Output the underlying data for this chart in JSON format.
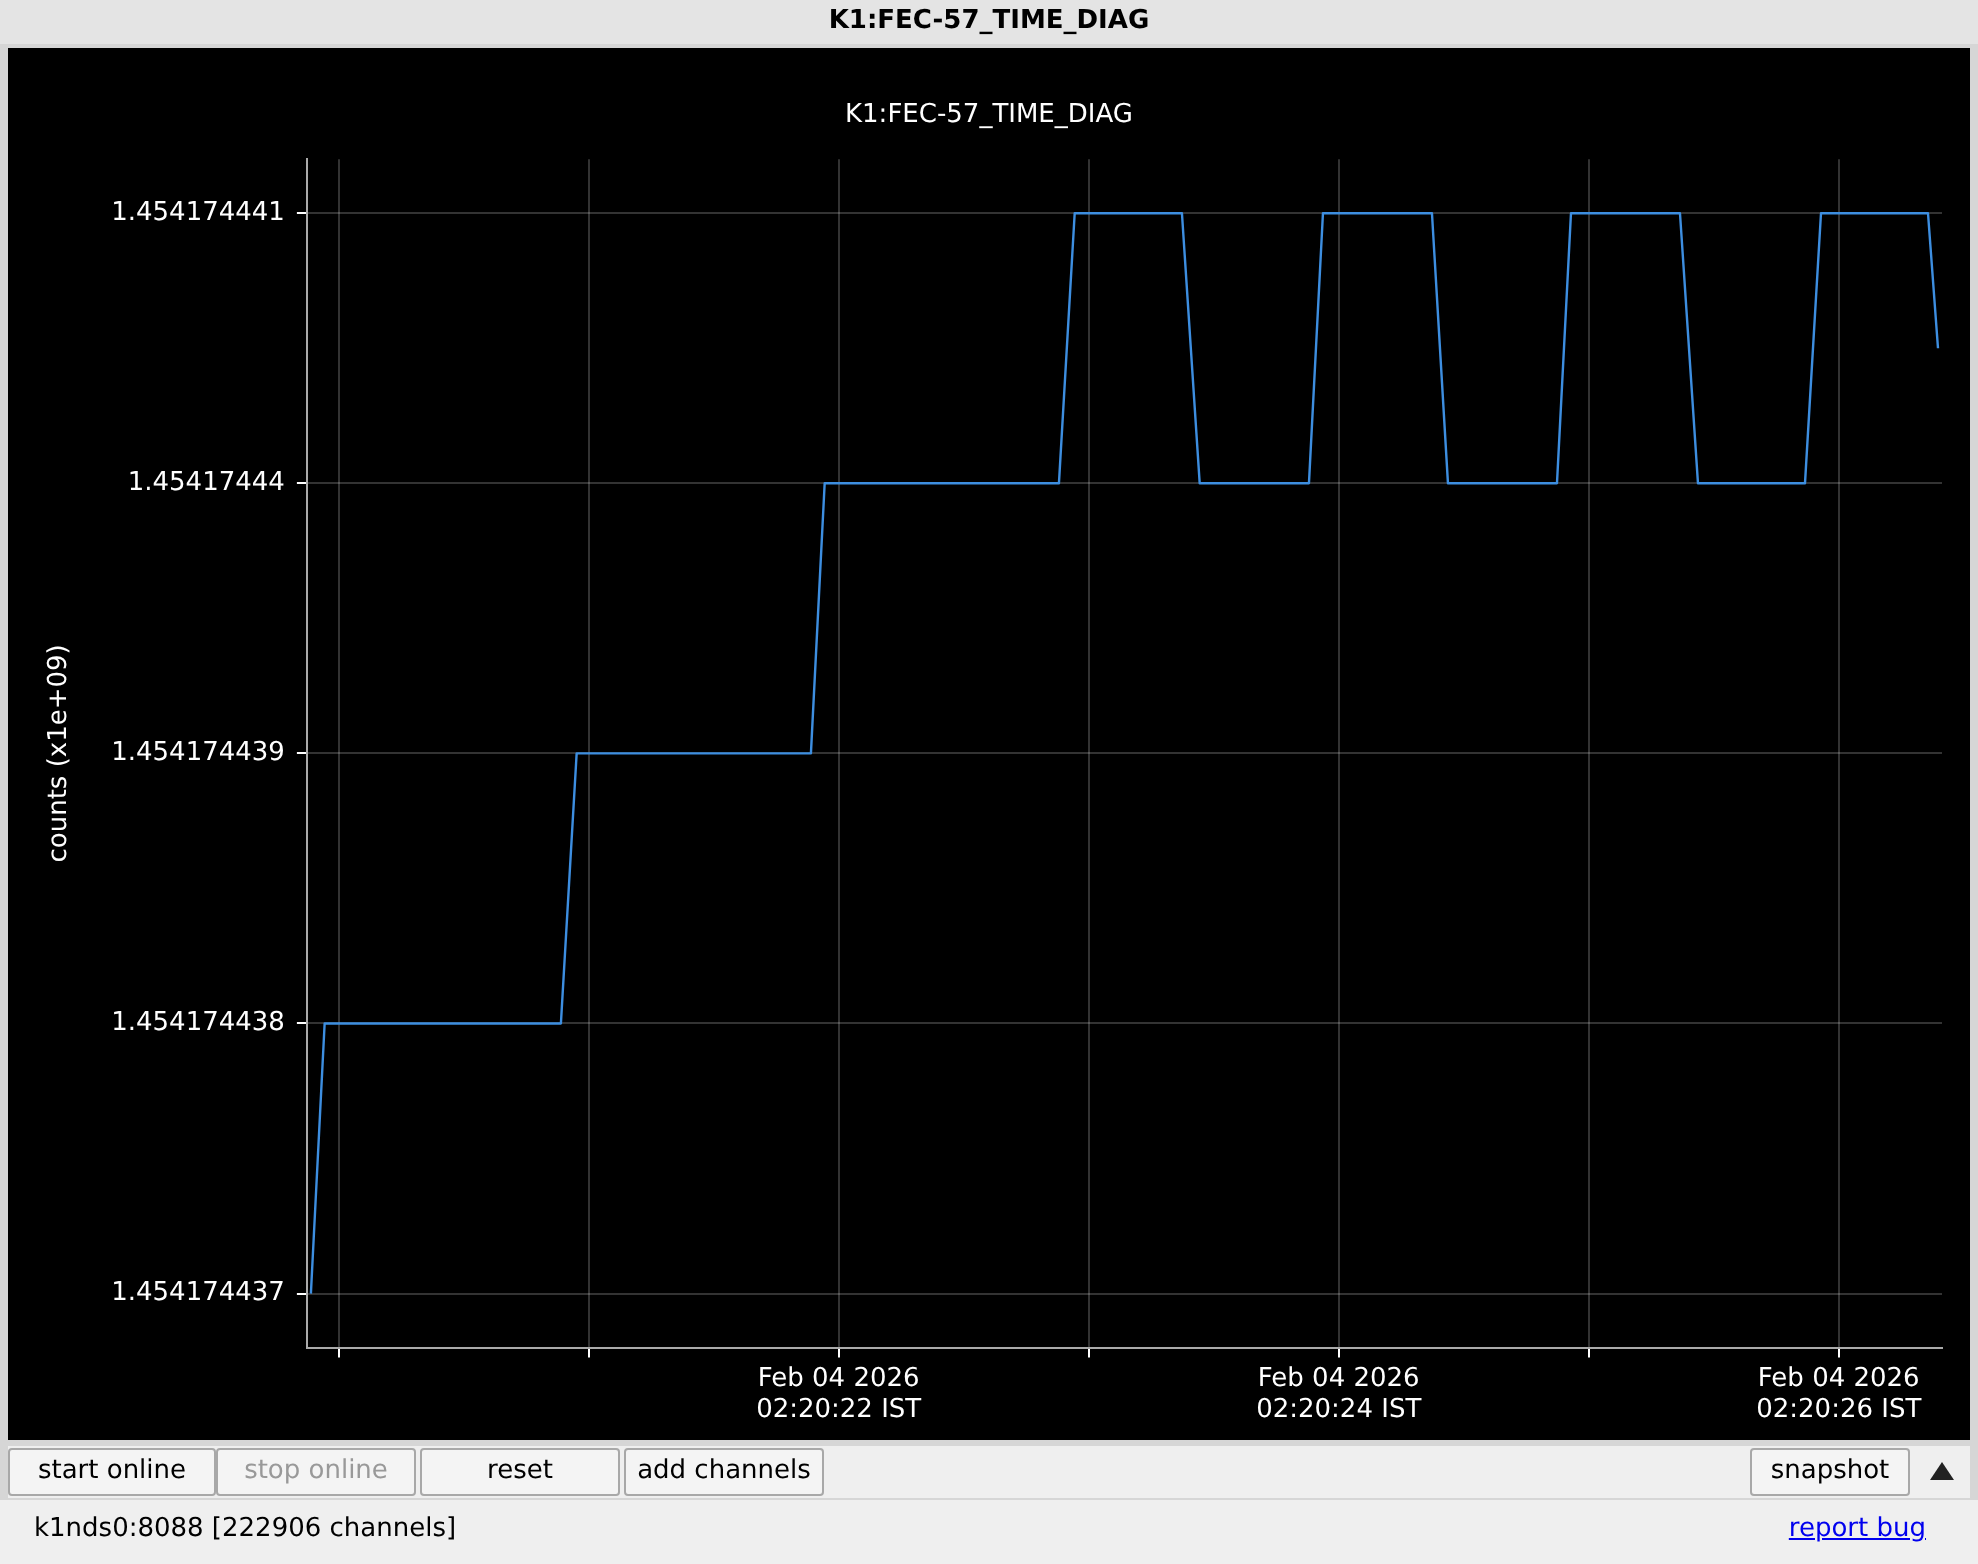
{
  "chart_data": {
    "type": "line",
    "title": "K1:FEC-57_TIME_DIAG",
    "ylabel": "counts (x1e+09)",
    "series": [
      {
        "color": "#3d8ee0",
        "x": [
          "2026-02-04T02:20:19.889",
          "2026-02-04T02:20:19.944",
          "2026-02-04T02:20:20.889",
          "2026-02-04T02:20:20.952",
          "2026-02-04T02:20:21.889",
          "2026-02-04T02:20:21.944",
          "2026-02-04T02:20:22.881",
          "2026-02-04T02:20:22.944",
          "2026-02-04T02:20:23.373",
          "2026-02-04T02:20:23.444",
          "2026-02-04T02:20:23.881",
          "2026-02-04T02:20:23.937",
          "2026-02-04T02:20:24.373",
          "2026-02-04T02:20:24.437",
          "2026-02-04T02:20:24.873",
          "2026-02-04T02:20:24.929",
          "2026-02-04T02:20:25.365",
          "2026-02-04T02:20:25.437",
          "2026-02-04T02:20:25.865",
          "2026-02-04T02:20:25.929",
          "2026-02-04T02:20:26.357",
          "2026-02-04T02:20:26.397"
        ],
        "values": [
          1.454174437,
          1.454174438,
          1.454174438,
          1.454174439,
          1.454174439,
          1.45417444,
          1.45417444,
          1.454174441,
          1.454174441,
          1.45417444,
          1.45417444,
          1.454174441,
          1.454174441,
          1.45417444,
          1.45417444,
          1.454174441,
          1.454174441,
          1.45417444,
          1.45417444,
          1.454174441,
          1.454174441,
          1.4541744405
        ]
      }
    ],
    "xlim": [
      "2026-02-04T02:20:19.873",
      "2026-02-04T02:20:26.413"
    ],
    "xticks": [
      {
        "value": "2026-02-04T02:20:20",
        "label": null
      },
      {
        "value": "2026-02-04T02:20:21",
        "label": null
      },
      {
        "value": "2026-02-04T02:20:22",
        "label": "Feb 04 2026\n02:20:22 IST"
      },
      {
        "value": "2026-02-04T02:20:23",
        "label": null
      },
      {
        "value": "2026-02-04T02:20:24",
        "label": "Feb 04 2026\n02:20:24 IST"
      },
      {
        "value": "2026-02-04T02:20:25",
        "label": null
      },
      {
        "value": "2026-02-04T02:20:26",
        "label": "Feb 04 2026\n02:20:26 IST"
      }
    ],
    "ylim": [
      1.4541744368,
      1.4541744412
    ],
    "yticks": [
      1.454174437,
      1.454174438,
      1.454174439,
      1.45417444,
      1.454174441
    ],
    "grid": true,
    "legend": false,
    "marker": "none",
    "line_style": "solid",
    "annotations": [
      "K1:FEC-57_TIME_DIAG",
      "start online",
      "stop online",
      "reset",
      "add channels",
      "snapshot",
      "k1nds0:8088  [222906 channels]",
      "report bug"
    ]
  }
}
